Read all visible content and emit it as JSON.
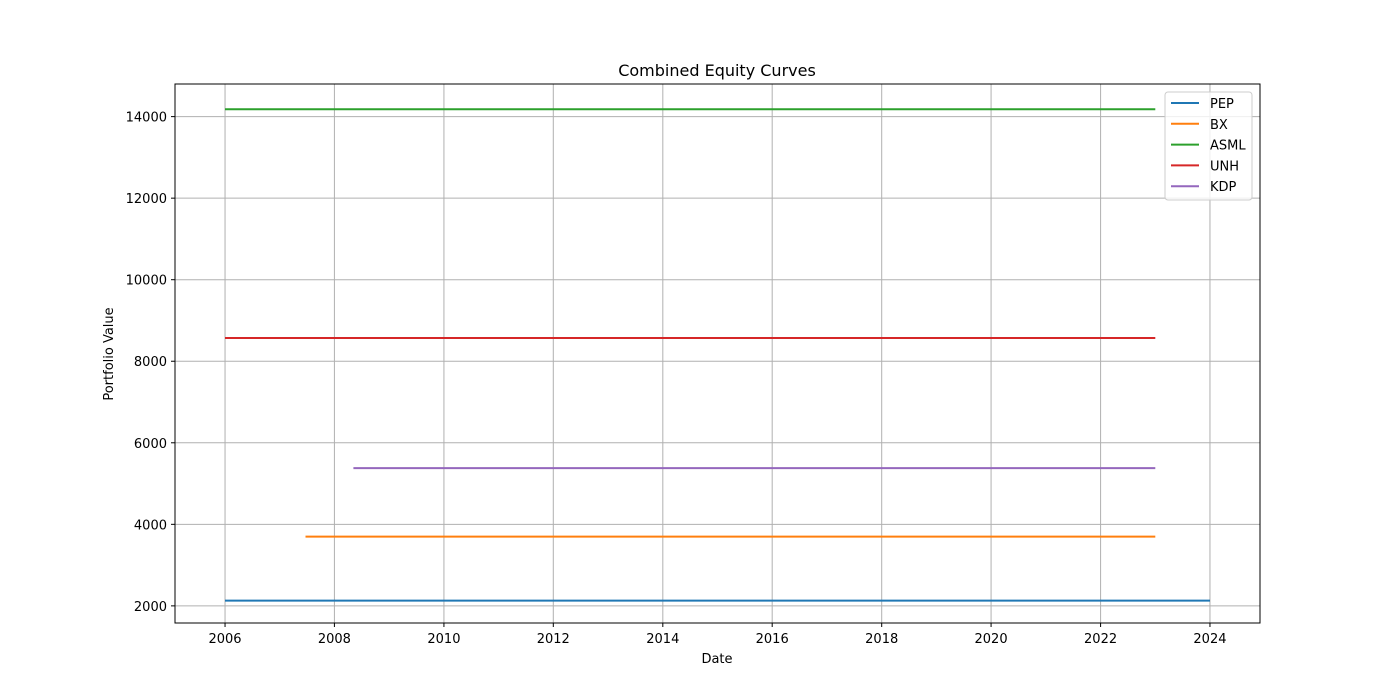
{
  "chart_data": {
    "type": "line",
    "title": "Combined Equity Curves",
    "xlabel": "Date",
    "ylabel": "Portfolio Value",
    "xlim": [
      "2005-02-01",
      "2024-11-30"
    ],
    "ylim": [
      1580,
      14800
    ],
    "x_ticks": [
      "2006",
      "2008",
      "2010",
      "2012",
      "2014",
      "2016",
      "2018",
      "2020",
      "2022",
      "2024"
    ],
    "y_ticks": [
      2000,
      4000,
      6000,
      8000,
      10000,
      12000,
      14000
    ],
    "grid": true,
    "legend_position": "top-right",
    "series": [
      {
        "name": "PEP",
        "color": "#1f77b4",
        "x": [
          "2006-01-01",
          "2024-01-01"
        ],
        "y": [
          2130,
          2130
        ]
      },
      {
        "name": "BX",
        "color": "#ff7f0e",
        "x": [
          "2007-06-22",
          "2023-01-01"
        ],
        "y": [
          3700,
          3700
        ]
      },
      {
        "name": "ASML",
        "color": "#2ca02c",
        "x": [
          "2006-01-01",
          "2023-01-01"
        ],
        "y": [
          14180,
          14180
        ]
      },
      {
        "name": "UNH",
        "color": "#d62728",
        "x": [
          "2006-01-01",
          "2023-01-01"
        ],
        "y": [
          8570,
          8570
        ]
      },
      {
        "name": "KDP",
        "color": "#9467bd",
        "x": [
          "2008-05-07",
          "2023-01-01"
        ],
        "y": [
          5380,
          5380
        ]
      }
    ]
  }
}
